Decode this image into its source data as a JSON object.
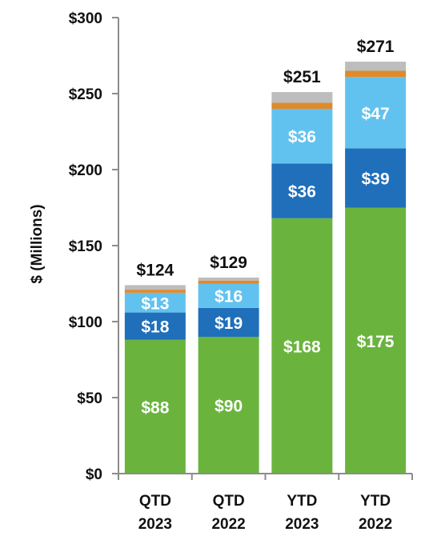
{
  "chart_data": {
    "type": "bar",
    "stacked": true,
    "ylabel": "$ (Millions)",
    "ylim": [
      0,
      300
    ],
    "yticks": [
      0,
      50,
      100,
      150,
      200,
      250,
      300
    ],
    "ytick_labels": [
      "$0",
      "$50",
      "$100",
      "$150",
      "$200",
      "$250",
      "$300"
    ],
    "grid": false,
    "categories": [
      {
        "line1": "QTD",
        "line2": "2023"
      },
      {
        "line1": "QTD",
        "line2": "2022"
      },
      {
        "line1": "YTD",
        "line2": "2023"
      },
      {
        "line1": "YTD",
        "line2": "2022"
      }
    ],
    "series": [
      {
        "color": "#6ab43e",
        "values": [
          88,
          90,
          168,
          175
        ],
        "labels": [
          "$88",
          "$90",
          "$168",
          "$175"
        ],
        "label_color": "#ffffff"
      },
      {
        "color": "#1f6fba",
        "values": [
          18,
          19,
          36,
          39
        ],
        "labels": [
          "$18",
          "$19",
          "$36",
          "$39"
        ],
        "label_color": "#ffffff"
      },
      {
        "color": "#62c2ef",
        "values": [
          13,
          16,
          36,
          47
        ],
        "labels": [
          "$13",
          "$16",
          "$36",
          "$47"
        ],
        "label_color": "#ffffff"
      },
      {
        "color": "#e08a2a",
        "values": [
          2,
          2,
          4,
          4
        ],
        "labels": [
          "",
          "",
          "",
          ""
        ],
        "label_color": "#ffffff"
      },
      {
        "color": "#bdbdbd",
        "values": [
          3,
          2,
          7,
          6
        ],
        "labels": [
          "",
          "",
          "",
          ""
        ],
        "label_color": "#ffffff"
      }
    ],
    "totals": [
      "$124",
      "$129",
      "$251",
      "$271"
    ]
  }
}
